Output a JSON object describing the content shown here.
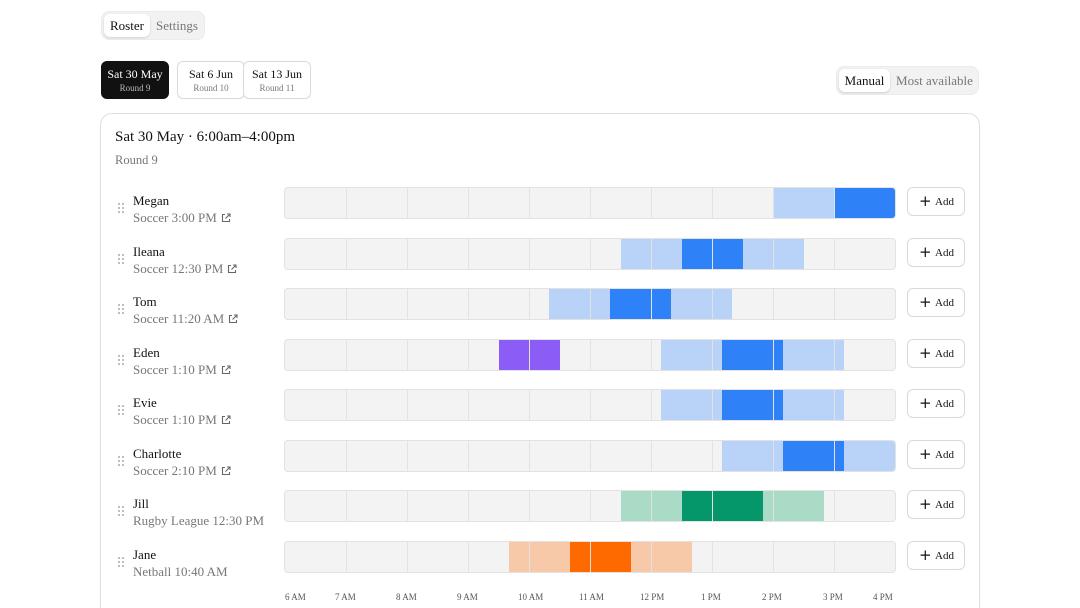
{
  "nav_tabs": [
    {
      "label": "Roster",
      "active": true
    },
    {
      "label": "Settings",
      "active": false
    }
  ],
  "rounds": [
    {
      "date": "Sat 30 May",
      "round": "Round 9",
      "active": true
    },
    {
      "date": "Sat 6 Jun",
      "round": "Round 10",
      "active": false
    },
    {
      "date": "Sat 13 Jun",
      "round": "Round 11",
      "active": false
    }
  ],
  "mode_toggle": [
    {
      "label": "Manual",
      "active": true
    },
    {
      "label": "Most available",
      "active": false
    }
  ],
  "card": {
    "title": "Sat 30 May · 6:00am–4:00pm",
    "subtitle": "Round 9"
  },
  "colors": {
    "blue_light": "#b9d2f8",
    "blue": "#2f81f7",
    "purple": "#8b5cf6",
    "green_light": "#a9dbc6",
    "green": "#059669",
    "orange_light": "#f8c9a9",
    "orange": "#ff6a00"
  },
  "timeline": {
    "start_hour": 6,
    "end_hour": 16,
    "axis_labels": [
      "6 AM",
      "7 AM",
      "8 AM",
      "9 AM",
      "10 AM",
      "11 AM",
      "12 PM",
      "1 PM",
      "2 PM",
      "3 PM",
      "4 PM"
    ]
  },
  "add_label": "Add",
  "people": [
    {
      "name": "Megan",
      "event": "Soccer 3:00 PM",
      "link": true,
      "segments": [
        {
          "start": 14,
          "end": 15,
          "color": "blue_light"
        },
        {
          "start": 15,
          "end": 16,
          "color": "blue"
        }
      ]
    },
    {
      "name": "Ileana",
      "event": "Soccer 12:30 PM",
      "link": true,
      "segments": [
        {
          "start": 11.5,
          "end": 12.5,
          "color": "blue_light"
        },
        {
          "start": 12.5,
          "end": 13.5,
          "color": "blue"
        },
        {
          "start": 13.5,
          "end": 14.5,
          "color": "blue_light"
        }
      ]
    },
    {
      "name": "Tom",
      "event": "Soccer 11:20 AM",
      "link": true,
      "segments": [
        {
          "start": 10.333,
          "end": 11.333,
          "color": "blue_light"
        },
        {
          "start": 11.333,
          "end": 12.333,
          "color": "blue"
        },
        {
          "start": 12.333,
          "end": 13.333,
          "color": "blue_light"
        }
      ]
    },
    {
      "name": "Eden",
      "event": "Soccer 1:10 PM",
      "link": true,
      "segments": [
        {
          "start": 9.5,
          "end": 10.5,
          "color": "purple"
        },
        {
          "start": 12.167,
          "end": 13.167,
          "color": "blue_light"
        },
        {
          "start": 13.167,
          "end": 14.167,
          "color": "blue"
        },
        {
          "start": 14.167,
          "end": 15.167,
          "color": "blue_light"
        }
      ]
    },
    {
      "name": "Evie",
      "event": "Soccer 1:10 PM",
      "link": true,
      "segments": [
        {
          "start": 12.167,
          "end": 13.167,
          "color": "blue_light"
        },
        {
          "start": 13.167,
          "end": 14.167,
          "color": "blue"
        },
        {
          "start": 14.167,
          "end": 15.167,
          "color": "blue_light"
        }
      ]
    },
    {
      "name": "Charlotte",
      "event": "Soccer 2:10 PM",
      "link": true,
      "segments": [
        {
          "start": 13.167,
          "end": 14.167,
          "color": "blue_light"
        },
        {
          "start": 14.167,
          "end": 15.167,
          "color": "blue"
        },
        {
          "start": 15.167,
          "end": 16,
          "color": "blue_light"
        }
      ]
    },
    {
      "name": "Jill",
      "event": "Rugby League 12:30 PM",
      "link": false,
      "segments": [
        {
          "start": 11.5,
          "end": 12.5,
          "color": "green_light"
        },
        {
          "start": 12.5,
          "end": 13.833,
          "color": "green"
        },
        {
          "start": 13.833,
          "end": 14.833,
          "color": "green_light"
        }
      ]
    },
    {
      "name": "Jane",
      "event": "Netball 10:40 AM",
      "link": false,
      "segments": [
        {
          "start": 9.667,
          "end": 10.667,
          "color": "orange_light"
        },
        {
          "start": 10.667,
          "end": 11.667,
          "color": "orange"
        },
        {
          "start": 11.667,
          "end": 12.667,
          "color": "orange_light"
        }
      ]
    }
  ]
}
